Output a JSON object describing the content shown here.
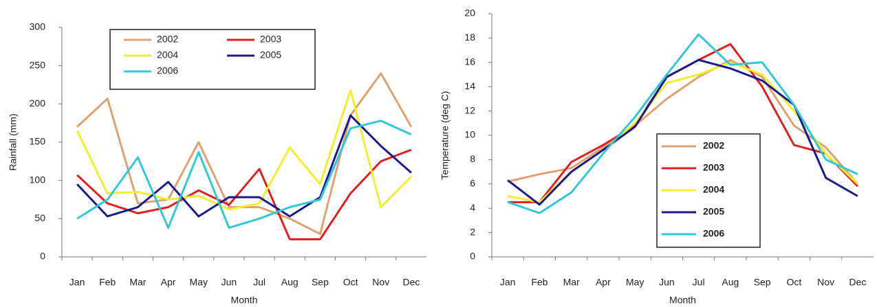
{
  "chart_data": [
    {
      "type": "line",
      "y_label": "Rainfall (mm)",
      "x_label": "Month",
      "categories": [
        "Jan",
        "Feb",
        "Mar",
        "Apr",
        "May",
        "Jun",
        "Jul",
        "Aug",
        "Sep",
        "Oct",
        "Nov",
        "Dec"
      ],
      "ylim": [
        0,
        300
      ],
      "yticks": [
        0,
        50,
        100,
        150,
        200,
        250,
        300
      ],
      "legend": "upper center",
      "series": [
        {
          "name": "2002",
          "color": "#e0a070",
          "values": [
            170,
            207,
            70,
            75,
            150,
            65,
            65,
            50,
            30,
            185,
            240,
            170
          ]
        },
        {
          "name": "2003",
          "color": "#e02020",
          "values": [
            107,
            70,
            57,
            65,
            87,
            68,
            115,
            23,
            23,
            83,
            125,
            140
          ]
        },
        {
          "name": "2004",
          "color": "#f2ee30",
          "values": [
            165,
            83,
            85,
            75,
            80,
            62,
            70,
            143,
            95,
            218,
            65,
            105
          ]
        },
        {
          "name": "2005",
          "color": "#1a1a8a",
          "values": [
            95,
            53,
            65,
            98,
            53,
            78,
            78,
            53,
            78,
            185,
            145,
            110
          ]
        },
        {
          "name": "2006",
          "color": "#30c8d8",
          "values": [
            50,
            75,
            130,
            38,
            137,
            38,
            50,
            65,
            75,
            168,
            178,
            160
          ]
        }
      ]
    },
    {
      "type": "line",
      "y_label": "Temperature (deg C)",
      "x_label": "Month",
      "categories": [
        "Jan",
        "Feb",
        "Mar",
        "Apr",
        "May",
        "Jun",
        "Jul",
        "Aug",
        "Sep",
        "Oct",
        "Nov",
        "Dec"
      ],
      "ylim": [
        0,
        20
      ],
      "yticks": [
        0,
        2,
        4,
        6,
        8,
        10,
        12,
        14,
        16,
        18,
        20
      ],
      "legend": "center right",
      "series": [
        {
          "name": "2002",
          "color": "#e0a070",
          "values": [
            6.2,
            6.8,
            7.3,
            9.0,
            10.8,
            13.0,
            14.8,
            16.2,
            14.8,
            10.8,
            9.0,
            6.0
          ]
        },
        {
          "name": "2003",
          "color": "#e02020",
          "values": [
            4.5,
            4.5,
            7.8,
            9.2,
            10.8,
            14.8,
            16.2,
            17.5,
            14.0,
            9.2,
            8.5,
            5.8
          ]
        },
        {
          "name": "2004",
          "color": "#f2ee30",
          "values": [
            5.0,
            4.5,
            7.0,
            8.8,
            11.0,
            14.3,
            15.0,
            16.0,
            15.0,
            12.0,
            8.5,
            6.0
          ]
        },
        {
          "name": "2005",
          "color": "#1a1a8a",
          "values": [
            6.3,
            4.3,
            7.0,
            8.8,
            10.7,
            14.8,
            16.2,
            15.5,
            14.5,
            12.5,
            6.5,
            5.0
          ]
        },
        {
          "name": "2006",
          "color": "#30c8d8",
          "values": [
            4.5,
            3.6,
            5.3,
            8.5,
            11.5,
            15.0,
            18.3,
            15.8,
            16.0,
            12.5,
            8.0,
            6.8
          ]
        }
      ]
    }
  ]
}
